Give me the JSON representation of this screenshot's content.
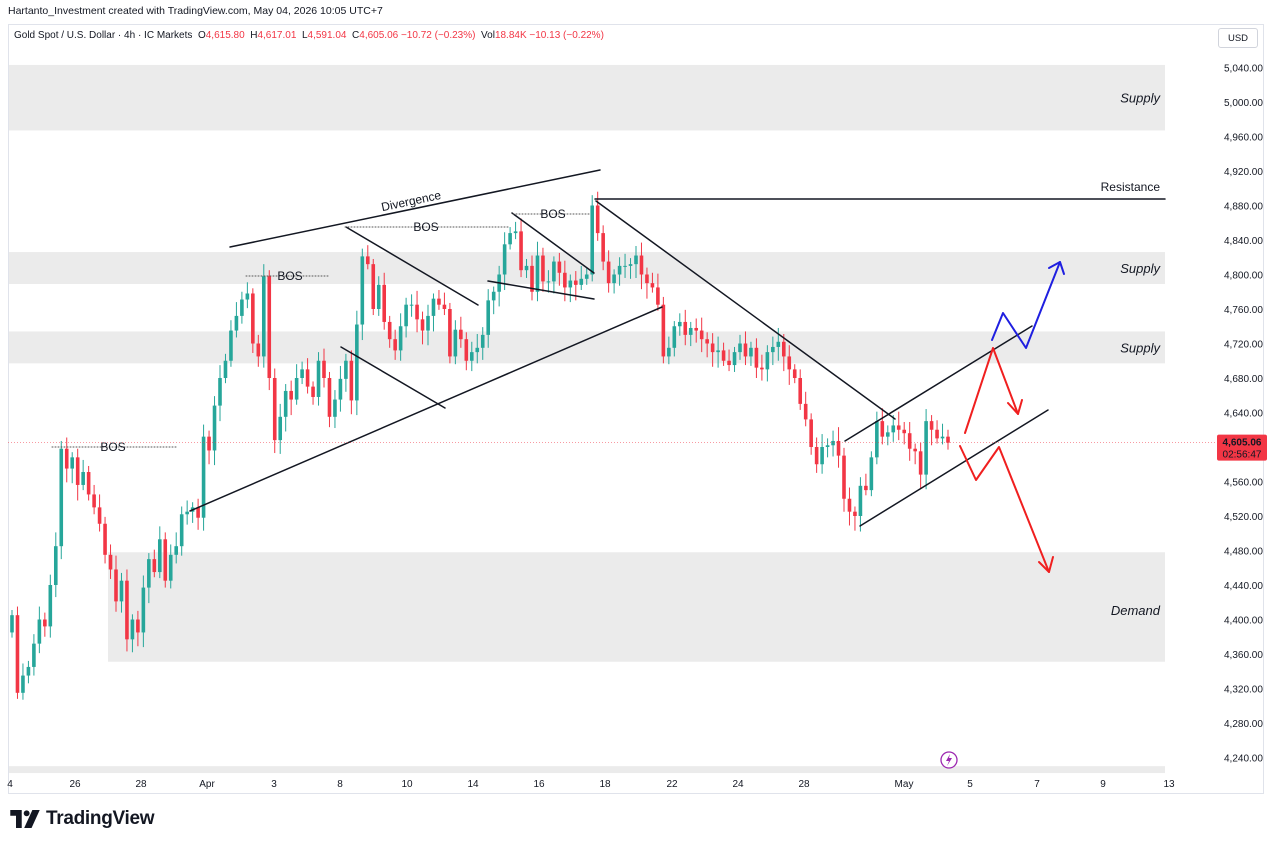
{
  "header": {
    "author_line": "Hartanto_Investment created with TradingView.com, May 04, 2026 10:05 UTC+7"
  },
  "legend": {
    "symbol": "Gold Spot / U.S. Dollar · 4h · IC Markets",
    "o_key": "O",
    "o_val": "4,615.80",
    "h_key": "H",
    "h_val": "4,617.01",
    "l_key": "L",
    "l_val": "4,591.04",
    "c_key": "C",
    "c_val": "4,605.06 −10.72 (−0.23%)",
    "vol_key": "Vol",
    "vol_val": "18.84K −10.13 (−0.22%)"
  },
  "currency_button": "USD",
  "price_tag": {
    "price": "4,605.06",
    "countdown": "02:56:47"
  },
  "brand": {
    "name": "TradingView"
  },
  "colors": {
    "up": "#26a69a",
    "down": "#f23645",
    "zone": "#ebebeb",
    "line": "#131722",
    "blue_arrow": "#1f1fe0",
    "red_arrow": "#f01f1f",
    "price_tag_bg": "#f23645",
    "lightning": "#9c27b0"
  },
  "chart_data": {
    "type": "candlestick",
    "symbol": "Gold Spot / U.S. Dollar",
    "timeframe": "4h",
    "x_ticks": [
      "4",
      "26",
      "28",
      "Apr",
      "3",
      "8",
      "10",
      "14",
      "16",
      "18",
      "22",
      "24",
      "28",
      "May",
      "5",
      "7",
      "9",
      "13"
    ],
    "y_ticks": [
      "5,040.00",
      "5,000.00",
      "4,960.00",
      "4,920.00",
      "4,880.00",
      "4,840.00",
      "4,800.00",
      "4,760.00",
      "4,720.00",
      "4,680.00",
      "4,640.00",
      "4,600.00",
      "4,560.00",
      "4,520.00",
      "4,480.00",
      "4,440.00",
      "4,400.00",
      "4,360.00",
      "4,320.00",
      "4,280.00",
      "4,240.00"
    ],
    "ylim": [
      4230,
      5050
    ],
    "current_price": 4605.06,
    "zones": [
      {
        "label": "Supply",
        "top": 5043,
        "bottom": 4967
      },
      {
        "label": "Supply",
        "top": 4826,
        "bottom": 4789
      },
      {
        "label": "Supply",
        "top": 4734,
        "bottom": 4697
      },
      {
        "label": "Demand",
        "top": 4478,
        "bottom": 4351
      },
      {
        "label": "",
        "top": 4230,
        "bottom": 4222
      }
    ],
    "annotations": [
      {
        "text": "BOS",
        "level": 4596
      },
      {
        "text": "BOS",
        "level": 4800
      },
      {
        "text": "BOS",
        "level": 4861
      },
      {
        "text": "BOS",
        "level": 4873
      },
      {
        "text": "Divergence"
      },
      {
        "text": "Resistance",
        "level": 4889
      }
    ],
    "closes": [
      4405,
      4315,
      4335,
      4345,
      4372,
      4400,
      4392,
      4440,
      4485,
      4598,
      4575,
      4588,
      4556,
      4571,
      4545,
      4530,
      4511,
      4475,
      4458,
      4421,
      4445,
      4377,
      4400,
      4385,
      4437,
      4470,
      4455,
      4493,
      4445,
      4475,
      4485,
      4522,
      4525,
      4530,
      4518,
      4612,
      4596,
      4648,
      4680,
      4700,
      4735,
      4752,
      4771,
      4778,
      4720,
      4705,
      4798,
      4680,
      4608,
      4635,
      4665,
      4655,
      4680,
      4690,
      4670,
      4658,
      4700,
      4680,
      4635,
      4655,
      4679,
      4700,
      4654,
      4742,
      4821,
      4812,
      4760,
      4788,
      4745,
      4725,
      4712,
      4740,
      4765,
      4765,
      4748,
      4735,
      4752,
      4772,
      4765,
      4760,
      4705,
      4736,
      4725,
      4700,
      4710,
      4715,
      4730,
      4770,
      4780,
      4800,
      4835,
      4848,
      4850,
      4805,
      4810,
      4780,
      4822,
      4792,
      4792,
      4815,
      4802,
      4785,
      4793,
      4788,
      4795,
      4800,
      4880,
      4848,
      4815,
      4790,
      4800,
      4810,
      4810,
      4812,
      4822,
      4800,
      4790,
      4785,
      4765,
      4705,
      4715,
      4740,
      4745,
      4730,
      4738,
      4735,
      4725,
      4720,
      4710,
      4712,
      4700,
      4695,
      4710,
      4720,
      4705,
      4715,
      4692,
      4690,
      4710,
      4716,
      4722,
      4705,
      4690,
      4680,
      4650,
      4632,
      4600,
      4580,
      4600,
      4602,
      4607,
      4590,
      4540,
      4525,
      4520,
      4555,
      4550,
      4588,
      4630,
      4612,
      4617,
      4625,
      4620,
      4616,
      4598,
      4595,
      4568,
      4630,
      4620,
      4610,
      4612,
      4605
    ]
  }
}
